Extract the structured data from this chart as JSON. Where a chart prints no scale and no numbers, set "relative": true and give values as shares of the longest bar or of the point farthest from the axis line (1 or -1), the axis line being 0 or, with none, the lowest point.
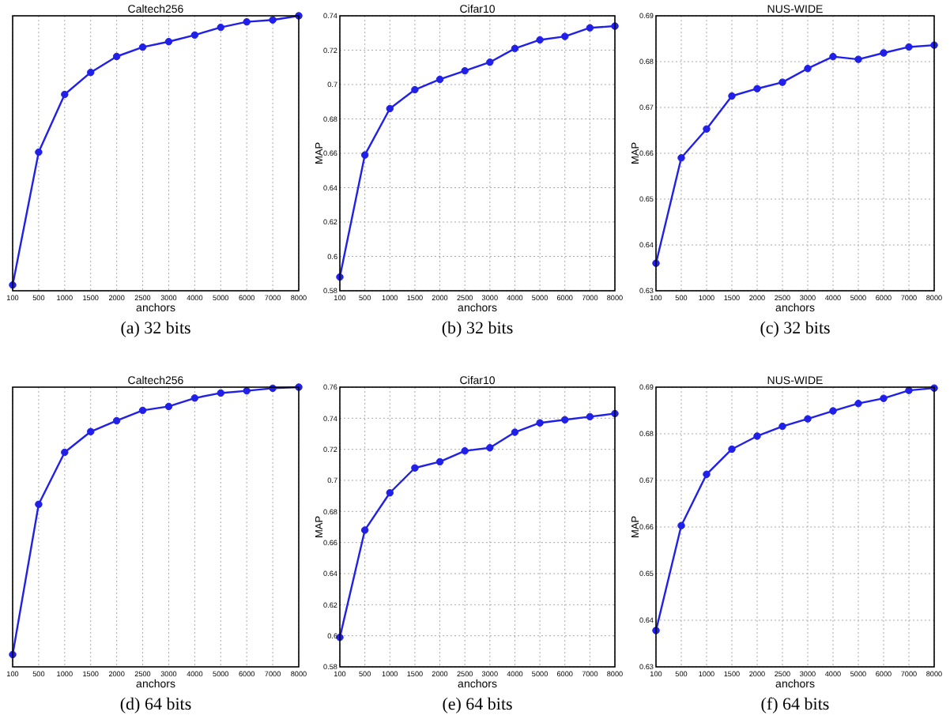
{
  "chart_data": [
    {
      "type": "line",
      "title": "Caltech256",
      "xlabel": "anchors",
      "categories": [
        "100",
        "500",
        "1000",
        "1500",
        "2000",
        "2500",
        "3000",
        "4000",
        "5000",
        "6000",
        "7000",
        "8000"
      ],
      "relative": true,
      "tick_labels": "x",
      "grid": "x",
      "marker": "circle",
      "line_style": "solid",
      "annotations": [
        "(a) 32 bits"
      ],
      "series": [
        {
          "color": "#2020e8",
          "values": [
            0.021,
            0.504,
            0.714,
            0.794,
            0.852,
            0.886,
            0.906,
            0.93,
            0.958,
            0.978,
            0.985,
            1
          ]
        }
      ]
    },
    {
      "type": "line",
      "title": "Cifar10",
      "xlabel": "anchors",
      "ylabel": "MAP",
      "categories": [
        "100",
        "500",
        "1000",
        "1500",
        "2000",
        "2500",
        "3000",
        "4000",
        "5000",
        "6000",
        "7000",
        "8000"
      ],
      "ylim": [
        0.58,
        0.74
      ],
      "yticks": [
        0.58,
        0.6,
        0.62,
        0.64,
        0.66,
        0.68,
        0.7,
        0.72,
        0.74
      ],
      "grid": true,
      "marker": "circle",
      "line_style": "solid",
      "annotations": [
        "(b) 32 bits"
      ],
      "series": [
        {
          "color": "#2020e8",
          "values": [
            0.588,
            0.659,
            0.686,
            0.697,
            0.703,
            0.708,
            0.713,
            0.721,
            0.726,
            0.728,
            0.733,
            0.734
          ]
        }
      ]
    },
    {
      "type": "line",
      "title": "NUS-WIDE",
      "xlabel": "anchors",
      "ylabel": "MAP",
      "categories": [
        "100",
        "500",
        "1000",
        "1500",
        "2000",
        "2500",
        "3000",
        "4000",
        "5000",
        "6000",
        "7000",
        "8000"
      ],
      "ylim": [
        0.63,
        0.69
      ],
      "yticks": [
        0.63,
        0.64,
        0.65,
        0.66,
        0.67,
        0.68,
        0.69
      ],
      "grid": true,
      "marker": "circle",
      "line_style": "solid",
      "annotations": [
        "(c) 32 bits"
      ],
      "series": [
        {
          "color": "#2020e8",
          "values": [
            0.636,
            0.659,
            0.6653,
            0.6725,
            0.6741,
            0.6755,
            0.6785,
            0.6811,
            0.6805,
            0.6819,
            0.6832,
            0.6836
          ]
        }
      ]
    },
    {
      "type": "line",
      "title": "Caltech256",
      "xlabel": "anchors",
      "categories": [
        "100",
        "500",
        "1000",
        "1500",
        "2000",
        "2500",
        "3000",
        "4000",
        "5000",
        "6000",
        "7000",
        "8000"
      ],
      "relative": true,
      "tick_labels": "x",
      "grid": "x",
      "marker": "circle",
      "line_style": "solid",
      "annotations": [
        "(d) 64 bits"
      ],
      "series": [
        {
          "color": "#2020e8",
          "values": [
            0.044,
            0.581,
            0.767,
            0.841,
            0.88,
            0.917,
            0.931,
            0.961,
            0.979,
            0.987,
            0.996,
            1
          ]
        }
      ]
    },
    {
      "type": "line",
      "title": "Cifar10",
      "xlabel": "anchors",
      "ylabel": "MAP",
      "categories": [
        "100",
        "500",
        "1000",
        "1500",
        "2000",
        "2500",
        "3000",
        "4000",
        "5000",
        "6000",
        "7000",
        "8000"
      ],
      "ylim": [
        0.58,
        0.76
      ],
      "yticks": [
        0.58,
        0.6,
        0.62,
        0.64,
        0.66,
        0.68,
        0.7,
        0.72,
        0.74,
        0.76
      ],
      "grid": true,
      "marker": "circle",
      "line_style": "solid",
      "annotations": [
        "(e) 64 bits"
      ],
      "series": [
        {
          "color": "#2020e8",
          "values": [
            0.599,
            0.668,
            0.692,
            0.708,
            0.712,
            0.719,
            0.721,
            0.731,
            0.737,
            0.739,
            0.741,
            0.743
          ]
        }
      ]
    },
    {
      "type": "line",
      "title": "NUS-WIDE",
      "xlabel": "anchors",
      "ylabel": "MAP",
      "categories": [
        "100",
        "500",
        "1000",
        "1500",
        "2000",
        "2500",
        "3000",
        "4000",
        "5000",
        "6000",
        "7000",
        "8000"
      ],
      "ylim": [
        0.63,
        0.69
      ],
      "yticks": [
        0.63,
        0.64,
        0.65,
        0.66,
        0.67,
        0.68,
        0.69
      ],
      "grid": true,
      "marker": "circle",
      "line_style": "solid",
      "annotations": [
        "(f) 64 bits"
      ],
      "series": [
        {
          "color": "#2020e8",
          "values": [
            0.6378,
            0.6603,
            0.6713,
            0.6767,
            0.6795,
            0.6816,
            0.6832,
            0.6849,
            0.6865,
            0.6876,
            0.6893,
            0.6898
          ]
        }
      ]
    }
  ]
}
